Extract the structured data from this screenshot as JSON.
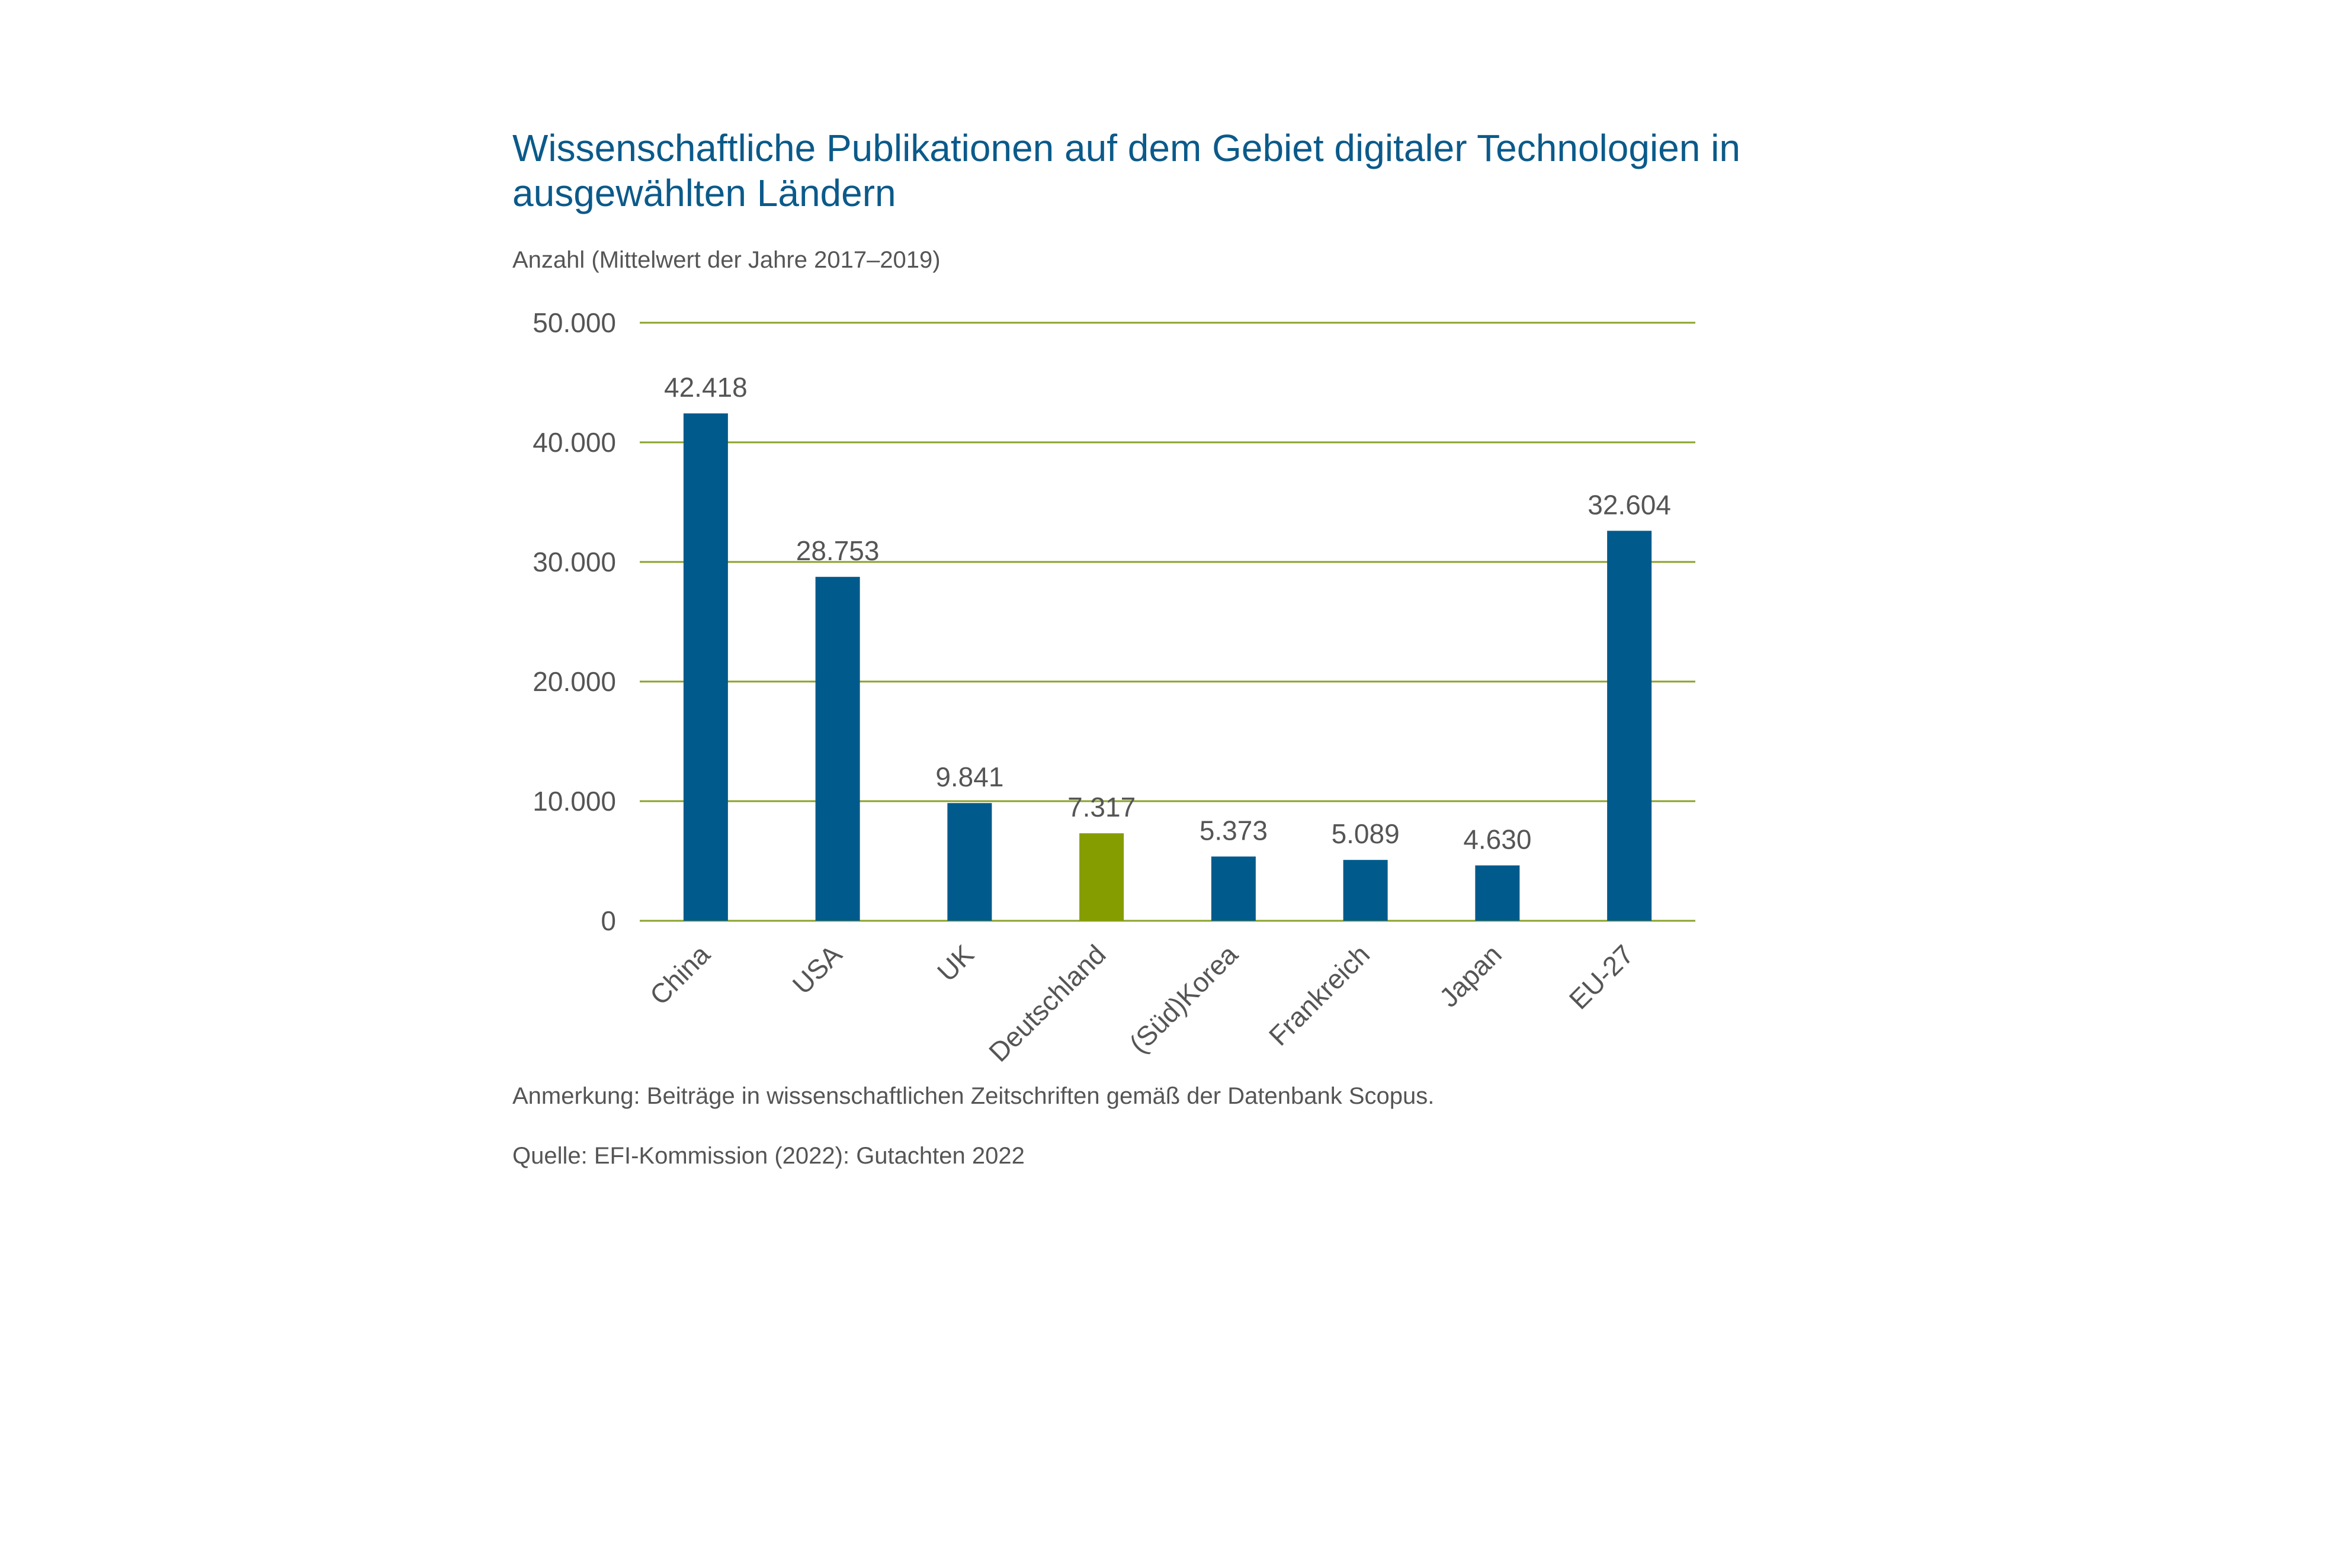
{
  "chart_data": {
    "type": "bar",
    "title_line1": "Wissenschaftliche Publikationen auf dem Gebiet digitaler Technologien in",
    "title_line2": "ausgewählten Ländern",
    "subtitle": "Anzahl (Mittelwert der Jahre 2017–2019)",
    "categories": [
      "China",
      "USA",
      "UK",
      "Deutschland",
      "(Süd)Korea",
      "Frankreich",
      "Japan",
      "EU-27"
    ],
    "values": [
      42418,
      28753,
      9841,
      7317,
      5373,
      5089,
      4630,
      32604
    ],
    "value_labels": [
      "42.418",
      "28.753",
      "9.841",
      "7.317",
      "5.373",
      "5.089",
      "4.630",
      "32.604"
    ],
    "highlight_index": 3,
    "ylim": [
      0,
      50000
    ],
    "yticks": [
      0,
      10000,
      20000,
      30000,
      40000,
      50000
    ],
    "ytick_labels": [
      "0",
      "10.000",
      "20.000",
      "30.000",
      "40.000",
      "50.000"
    ],
    "grid": true,
    "xlabel": "",
    "ylabel": "",
    "note": "Anmerkung: Beiträge in wissenschaftlichen Zeitschriften gemäß der Datenbank Scopus.",
    "source": "Quelle: EFI-Kommission (2022): Gutachten 2022",
    "colors": {
      "bar": "#005a8c",
      "highlight": "#869d00",
      "grid": "#8aa32a",
      "title": "#0b5a8a",
      "text": "#555555"
    }
  }
}
